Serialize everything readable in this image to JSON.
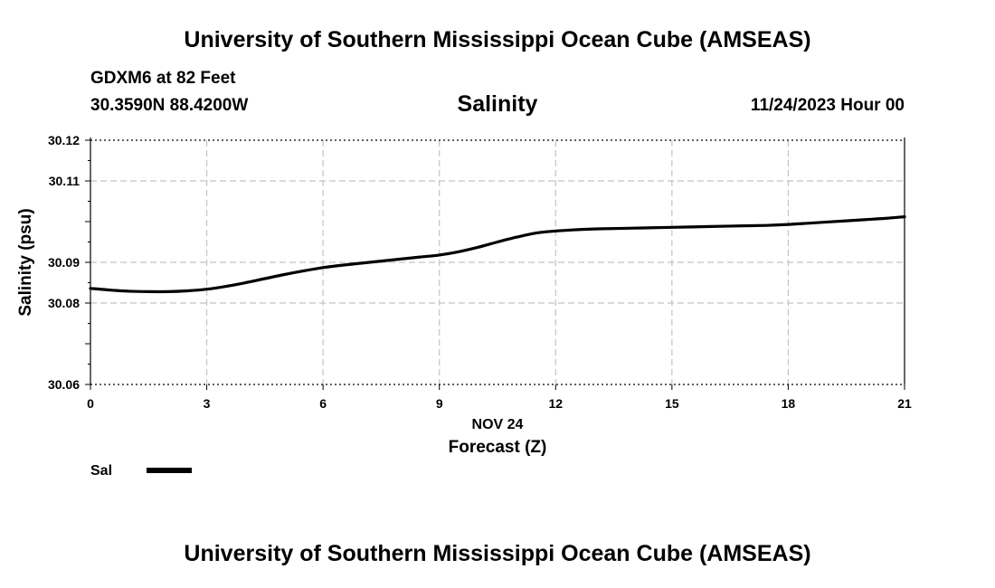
{
  "header": {
    "title": "University of Southern Mississippi Ocean Cube (AMSEAS)",
    "station": "GDXM6 at 82 Feet",
    "coordinates": "30.3590N  88.4200W",
    "datetime": "11/24/2023 Hour 00"
  },
  "footer": {
    "title": "University of Southern Mississippi Ocean Cube (AMSEAS)"
  },
  "chart_data": {
    "type": "line",
    "title": "Salinity",
    "xlabel": "Forecast (Z)",
    "xlabel_date": "NOV 24",
    "ylabel": "Salinity (psu)",
    "xlim": [
      0,
      21
    ],
    "ylim": [
      30.06,
      30.12
    ],
    "x_ticks": [
      0,
      3,
      6,
      9,
      12,
      15,
      18,
      21
    ],
    "x_tick_labels": [
      "0",
      "3",
      "6",
      "9",
      "12",
      "15",
      "18",
      "21"
    ],
    "y_ticks": [
      30.06,
      30.08,
      30.09,
      30.11,
      30.12
    ],
    "y_tick_labels": [
      "30.06",
      "30.08",
      "30.09",
      "30.11",
      "30.12"
    ],
    "grid": true,
    "series": [
      {
        "name": "Sal",
        "color": "#000000",
        "x": [
          0,
          0.5,
          1,
          1.5,
          2,
          2.5,
          3,
          3.5,
          4,
          4.5,
          5,
          5.5,
          6,
          6.5,
          7,
          7.5,
          8,
          8.5,
          9,
          9.5,
          10,
          10.5,
          11,
          11.5,
          12,
          12.5,
          13,
          13.5,
          14,
          14.5,
          15,
          15.5,
          16,
          16.5,
          17,
          17.5,
          18,
          18.5,
          19,
          19.5,
          20,
          20.5,
          21
        ],
        "values": [
          30.0836,
          30.0832,
          30.0829,
          30.0828,
          30.0828,
          30.083,
          30.0834,
          30.0841,
          30.085,
          30.086,
          30.087,
          30.0879,
          30.0887,
          30.0893,
          30.0898,
          30.0903,
          30.0908,
          30.0913,
          30.0918,
          30.0926,
          30.0937,
          30.095,
          30.0962,
          30.0972,
          30.0977,
          30.098,
          30.0982,
          30.0983,
          30.0984,
          30.0985,
          30.0986,
          30.0987,
          30.0988,
          30.0989,
          30.099,
          30.0991,
          30.0993,
          30.0996,
          30.0999,
          30.1002,
          30.1005,
          30.1008,
          30.1012
        ]
      }
    ],
    "legend": {
      "position": "bottom-left",
      "entries": [
        "Sal"
      ]
    }
  }
}
